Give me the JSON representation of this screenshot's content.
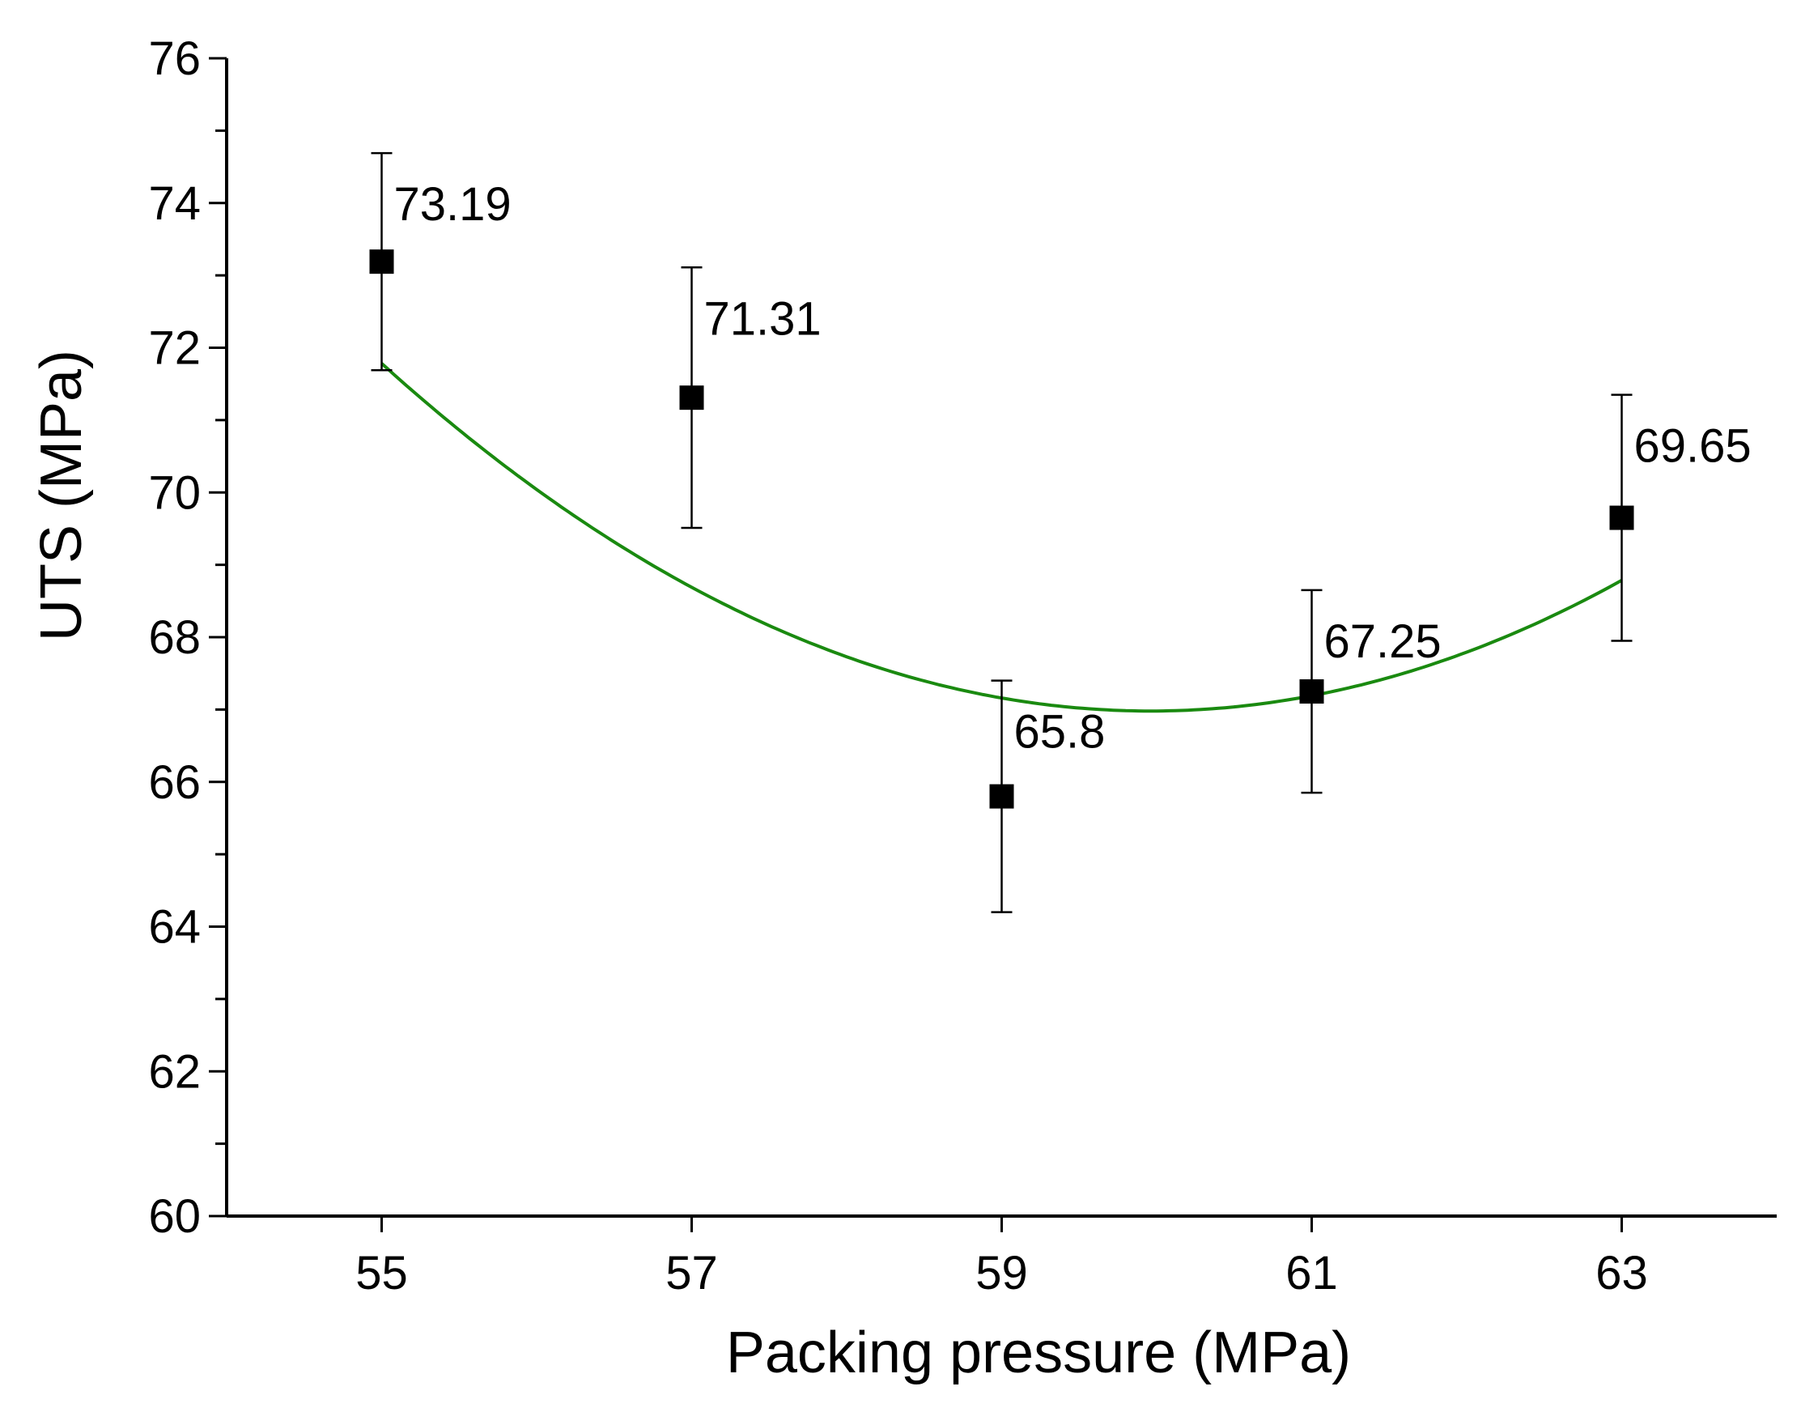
{
  "chart_data": {
    "type": "scatter",
    "title": "",
    "xlabel": "Packing pressure (MPa)",
    "ylabel": "UTS (MPa)",
    "xlim": [
      54,
      64
    ],
    "ylim": [
      60,
      76
    ],
    "xticks": [
      55,
      57,
      59,
      61,
      63
    ],
    "yticks": [
      60,
      62,
      64,
      66,
      68,
      70,
      72,
      74,
      76
    ],
    "yminor_step": 1,
    "grid": false,
    "legend": "none",
    "series": [
      {
        "name": "UTS",
        "marker": "square",
        "color": "#000000",
        "x": [
          55,
          57,
          59,
          61,
          63
        ],
        "y": [
          73.19,
          71.31,
          65.8,
          67.25,
          69.65
        ],
        "error": [
          1.5,
          1.8,
          1.6,
          1.4,
          1.7
        ],
        "labels": [
          "73.19",
          "71.31",
          "65.8",
          "67.25",
          "69.65"
        ]
      }
    ],
    "fit": {
      "name": "quadratic fit",
      "color": "#1a8a10",
      "x_range": [
        55,
        63
      ],
      "coefficients": [
        0.1953,
        -23.42,
        769.1
      ]
    }
  }
}
